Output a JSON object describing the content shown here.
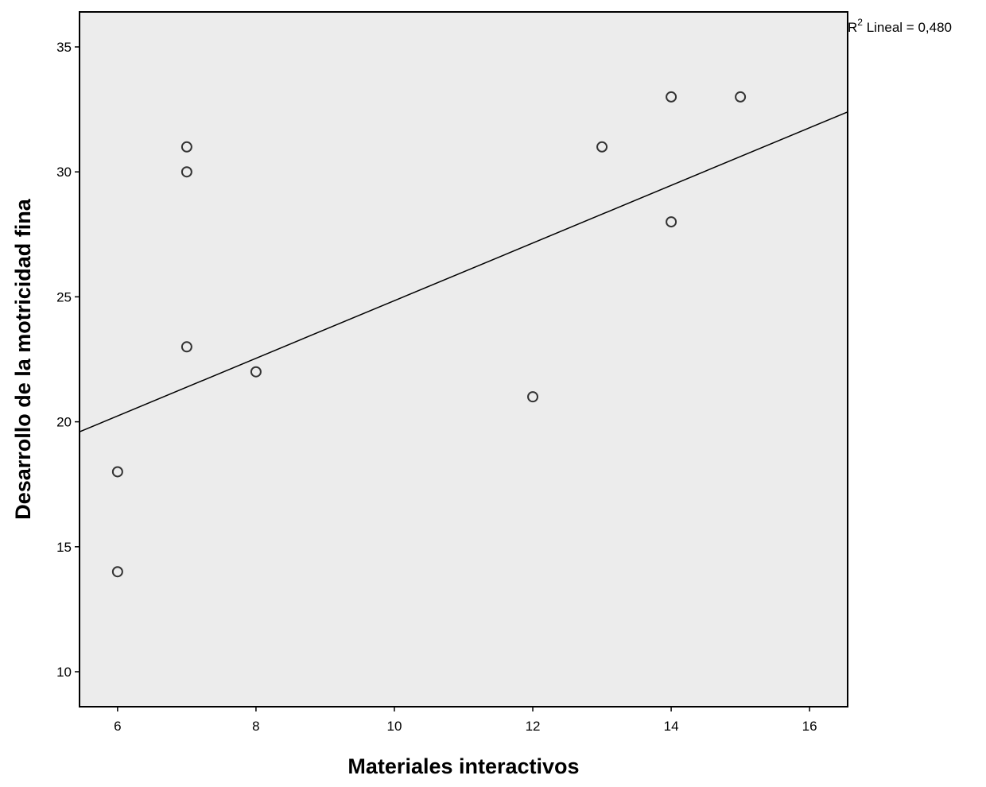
{
  "chart_data": {
    "type": "scatter",
    "xlabel": "Materiales interactivos",
    "ylabel": "Desarrollo de la motricidad fina",
    "xlim": [
      5.45,
      16.55
    ],
    "ylim": [
      8.6,
      36.4
    ],
    "xticks": [
      "6",
      "8",
      "10",
      "12",
      "14",
      "16"
    ],
    "yticks": [
      "10",
      "15",
      "20",
      "25",
      "30",
      "35"
    ],
    "grid": false,
    "background_color": "#ececec",
    "points": [
      {
        "x": 6,
        "y": 14
      },
      {
        "x": 6,
        "y": 18
      },
      {
        "x": 7,
        "y": 23
      },
      {
        "x": 7,
        "y": 30
      },
      {
        "x": 7,
        "y": 31
      },
      {
        "x": 8,
        "y": 22
      },
      {
        "x": 12,
        "y": 21
      },
      {
        "x": 13,
        "y": 31
      },
      {
        "x": 14,
        "y": 28
      },
      {
        "x": 14,
        "y": 33
      },
      {
        "x": 15,
        "y": 33
      }
    ],
    "fit_line": {
      "type": "linear",
      "r2_prefix": "R",
      "r2_sup": "2",
      "r2_text": " Lineal = 0,480",
      "start": {
        "x": 5.45,
        "y": 19.6
      },
      "end": {
        "x": 16.55,
        "y": 32.4
      }
    }
  }
}
